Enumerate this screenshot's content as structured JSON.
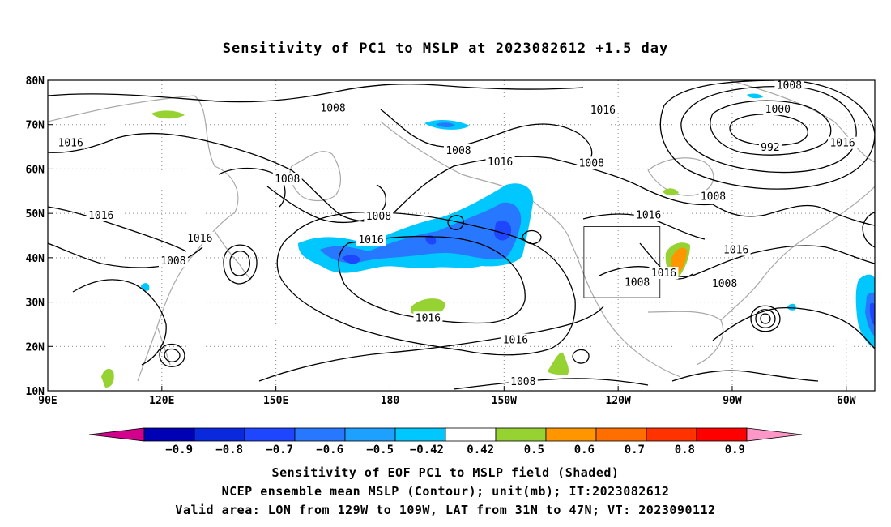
{
  "title": "Sensitivity of PC1 to MSLP at 2023082612 +1.5 day",
  "map": {
    "lat_labels": [
      "80N",
      "70N",
      "60N",
      "50N",
      "40N",
      "30N",
      "20N",
      "10N"
    ],
    "lon_labels": [
      "90E",
      "120E",
      "150E",
      "180",
      "150W",
      "120W",
      "90W",
      "60W"
    ],
    "contour_labels": [
      {
        "text": "1008",
        "lon": 165,
        "lat": 73.7
      },
      {
        "text": "1016",
        "lon": 96,
        "lat": 65.8
      },
      {
        "text": "1008",
        "lon": 153,
        "lat": 57.7
      },
      {
        "text": "1016",
        "lon": 104,
        "lat": 49.5
      },
      {
        "text": "1016",
        "lon": 130,
        "lat": 44.4
      },
      {
        "text": "1008",
        "lon": 123,
        "lat": 39.2
      },
      {
        "text": "1016",
        "lon": 175,
        "lat": 44
      },
      {
        "text": "1008",
        "lon": 177,
        "lat": 49.3
      },
      {
        "text": "1008",
        "lon": 198,
        "lat": 64.1
      },
      {
        "text": "1016",
        "lon": 209,
        "lat": 61.5
      },
      {
        "text": "1008",
        "lon": 233,
        "lat": 61.3
      },
      {
        "text": "1016",
        "lon": 236,
        "lat": 73.2
      },
      {
        "text": "1016",
        "lon": 248,
        "lat": 49.6
      },
      {
        "text": "1016",
        "lon": 252,
        "lat": 36.5
      },
      {
        "text": "1008",
        "lon": 245,
        "lat": 34.4
      },
      {
        "text": "1008",
        "lon": 268,
        "lat": 34.1
      },
      {
        "text": "1016",
        "lon": 271,
        "lat": 41.7
      },
      {
        "text": "1008",
        "lon": 265,
        "lat": 53.8
      },
      {
        "text": "1008",
        "lon": 285,
        "lat": 78.8
      },
      {
        "text": "1000",
        "lon": 282,
        "lat": 73.4
      },
      {
        "text": "992",
        "lon": 280,
        "lat": 64.8
      },
      {
        "text": "1016",
        "lon": 299,
        "lat": 65.8
      },
      {
        "text": "1016",
        "lon": 190,
        "lat": 26.4
      },
      {
        "text": "1016",
        "lon": 213,
        "lat": 21.4
      },
      {
        "text": "1008",
        "lon": 215,
        "lat": 12
      }
    ],
    "valid_box": {
      "lon_min": 231,
      "lon_max": 251,
      "lat_min": 31,
      "lat_max": 47
    }
  },
  "colorbar": {
    "labels": [
      "−0.9",
      "−0.8",
      "−0.7",
      "−0.6",
      "−0.5",
      "−0.42",
      "0.42",
      "0.5",
      "0.6",
      "0.7",
      "0.8",
      "0.9"
    ],
    "colors": [
      "#d2008c",
      "#0000b4",
      "#0a28dc",
      "#1e46ff",
      "#2878ff",
      "#1ea0ff",
      "#00c8ff",
      "#ffffff",
      "#96d232",
      "#ff9600",
      "#ff6e00",
      "#ff3200",
      "#ff0000",
      "#ff96c8"
    ]
  },
  "captions": {
    "line1": "Sensitivity of EOF PC1 to MSLP field (Shaded)",
    "line2": "NCEP ensemble mean MSLP (Contour); unit(mb); IT:2023082612",
    "line3": "Valid area: LON from 129W to 109W, LAT from 31N to 47N; VT: 2023090112"
  }
}
